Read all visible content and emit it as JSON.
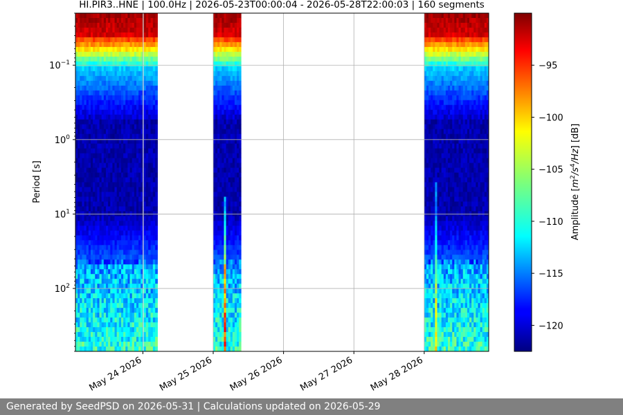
{
  "chart_data": {
    "type": "heatmap",
    "title": "HI.PIR3..HNE | 100.0Hz | 2026-05-23T00:00:04 - 2026-05-28T22:00:03 | 160 segments",
    "ylabel": "Period [s]",
    "xlabel": "",
    "y_scale": "log",
    "ylim": [
      0.02,
      700
    ],
    "y_ticks": [
      {
        "value": 0.1,
        "base": "10",
        "exp": "−1"
      },
      {
        "value": 1,
        "base": "10",
        "exp": "0"
      },
      {
        "value": 10,
        "base": "10",
        "exp": "1"
      },
      {
        "value": 100,
        "base": "10",
        "exp": "2"
      }
    ],
    "xlim": [
      "2026-05-23T01:00",
      "2026-05-28T22:00"
    ],
    "x_ticks": [
      {
        "value": "2026-05-24",
        "label": "May 24 2026"
      },
      {
        "value": "2026-05-25",
        "label": "May 25 2026"
      },
      {
        "value": "2026-05-26",
        "label": "May 26 2026"
      },
      {
        "value": "2026-05-27",
        "label": "May 27 2026"
      },
      {
        "value": "2026-05-28",
        "label": "May 28 2026"
      }
    ],
    "grid": true,
    "data_segments": [
      {
        "start": "2026-05-23T01:00",
        "end": "2026-05-24T00:00"
      },
      {
        "start": "2026-05-24T00:15",
        "end": "2026-05-24T05:00"
      },
      {
        "start": "2026-05-25T00:00",
        "end": "2026-05-25T09:30"
      },
      {
        "start": "2026-05-28T00:00",
        "end": "2026-05-28T22:00"
      }
    ],
    "colorbar": {
      "label_main": "Amplitude [",
      "label_unit": "m",
      "label_sup1": "2",
      "label_mid": "/s",
      "label_sup2": "4",
      "label_end": "/Hz",
      "label_tail": "] [dB]",
      "min": -122.5,
      "max": -90,
      "ticks": [
        -120,
        -115,
        -110,
        -105,
        -100,
        -95
      ],
      "tick_labels": [
        "−120",
        "−115",
        "−110",
        "−105",
        "−100",
        "−95"
      ],
      "colormap": "jet"
    }
  },
  "footer": {
    "text": "Generated by SeedPSD on 2026-05-31 | Calculations updated on 2026-05-29"
  }
}
